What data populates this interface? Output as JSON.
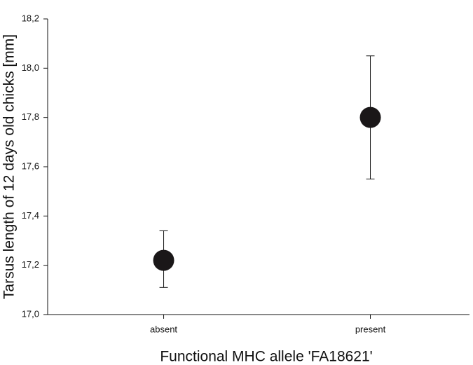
{
  "chart_data": {
    "type": "errorpoint",
    "xlabel": "Functional MHC allele 'FA18621'",
    "ylabel": "Tarsus length of 12 days old chicks [mm]",
    "categories": [
      "absent",
      "present"
    ],
    "values": [
      17.22,
      17.8
    ],
    "lower": [
      17.11,
      17.55
    ],
    "upper": [
      17.34,
      18.05
    ],
    "color": "#1a1718",
    "ylim": [
      17.0,
      18.2
    ],
    "yticks": [
      {
        "value": 17.0,
        "label": "17,0"
      },
      {
        "value": 17.2,
        "label": "17,2"
      },
      {
        "value": 17.4,
        "label": "17,4"
      },
      {
        "value": 17.6,
        "label": "17,6"
      },
      {
        "value": 17.8,
        "label": "17,8"
      },
      {
        "value": 18.0,
        "label": "18,0"
      },
      {
        "value": 18.2,
        "label": "18,2"
      }
    ]
  }
}
